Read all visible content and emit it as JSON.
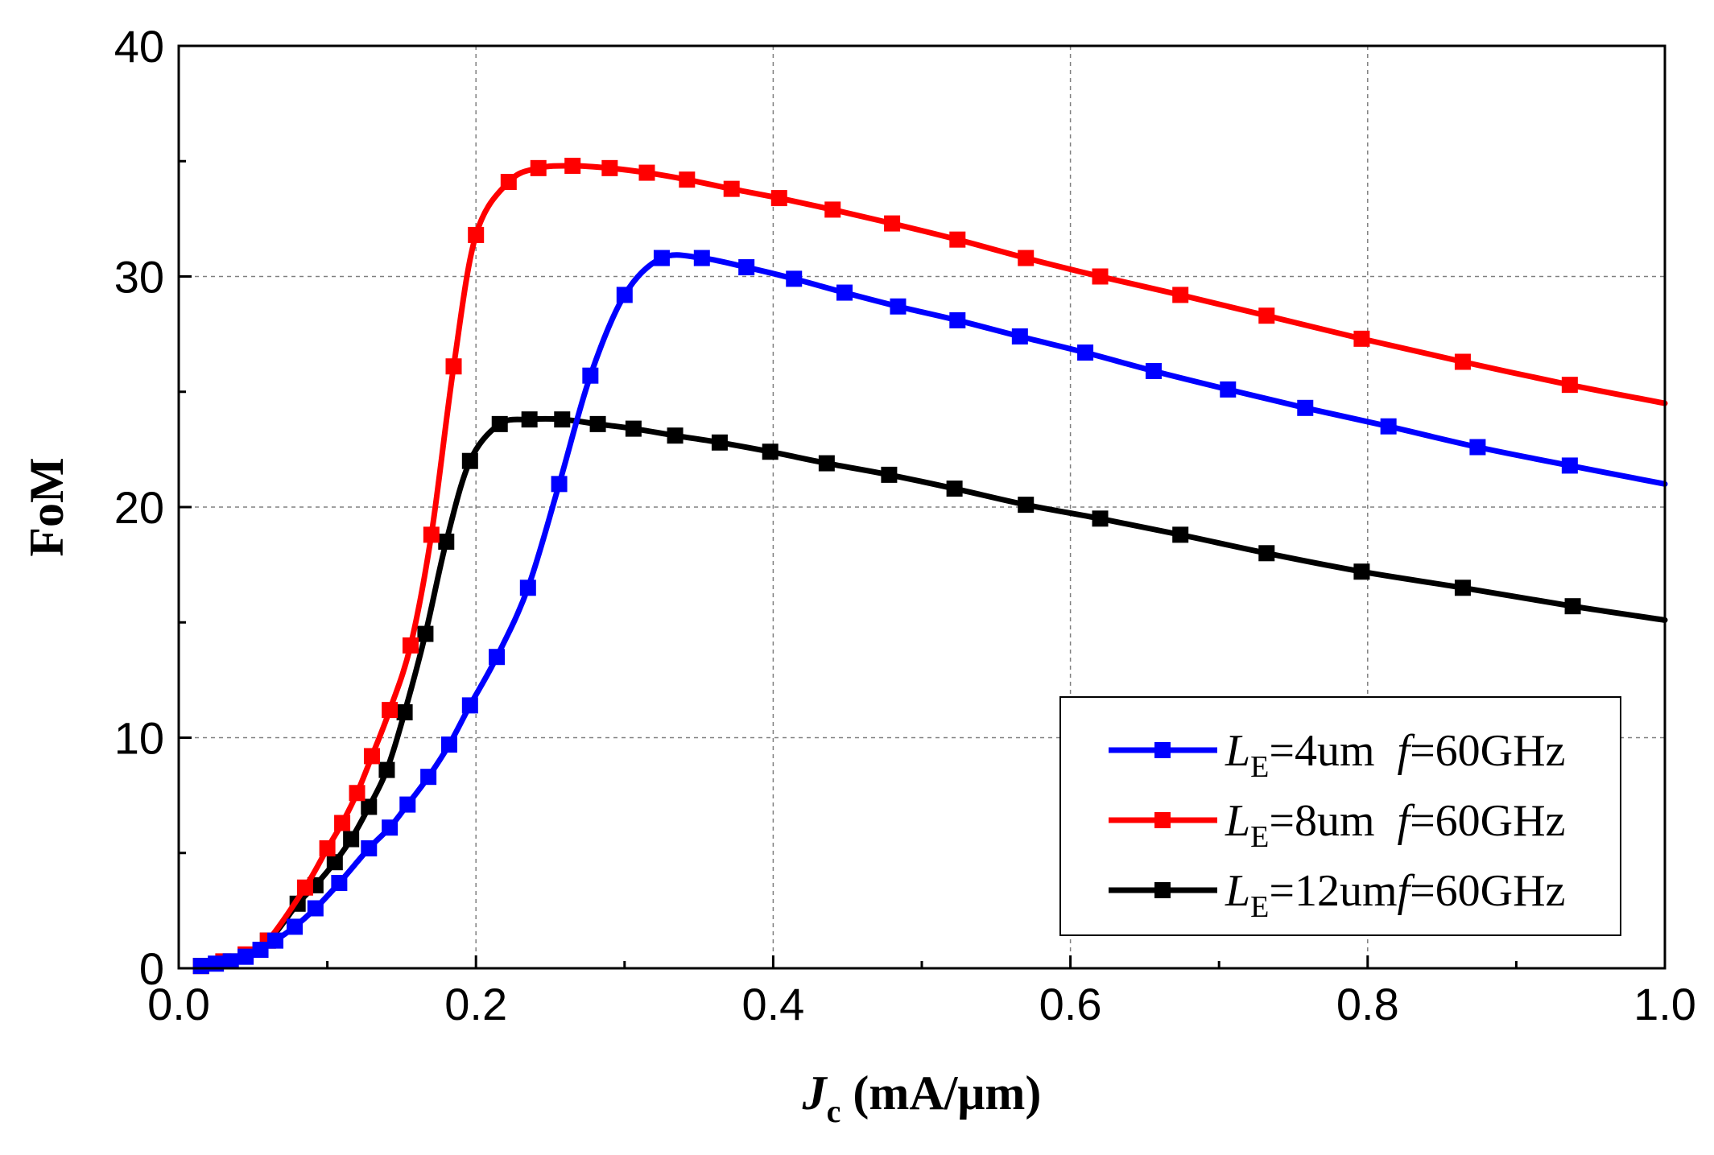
{
  "chart_data": {
    "type": "line",
    "title": "",
    "xlabel": {
      "main": "J",
      "sub": "c",
      "rest": " (mA/μm)"
    },
    "ylabel": "FoM",
    "xlim": [
      0.0,
      1.0
    ],
    "ylim": [
      0,
      40
    ],
    "xticks": [
      0.0,
      0.2,
      0.4,
      0.6,
      0.8,
      1.0
    ],
    "xtick_labels": [
      "0.0",
      "0.2",
      "0.4",
      "0.6",
      "0.8",
      "1.0"
    ],
    "yticks": [
      0,
      10,
      20,
      30,
      40
    ],
    "ytick_labels": [
      "0",
      "10",
      "20",
      "30",
      "40"
    ],
    "grid": true,
    "legend_position": "bottom-right",
    "series": [
      {
        "name": "LE=4um f=60GHz",
        "legend": {
          "l": "L",
          "sub": "E",
          "mid": "=4um  ",
          "f": "f",
          "tail": "=60GHz"
        },
        "color": "#0000ff",
        "x": [
          0.015,
          0.025,
          0.035,
          0.045,
          0.055,
          0.065,
          0.078,
          0.092,
          0.108,
          0.128,
          0.142,
          0.154,
          0.168,
          0.182,
          0.196,
          0.214,
          0.235,
          0.256,
          0.277,
          0.3,
          0.325,
          0.352,
          0.382,
          0.414,
          0.448,
          0.484,
          0.524,
          0.566,
          0.61,
          0.656,
          0.706,
          0.758,
          0.814,
          0.874,
          0.936,
          1.0
        ],
        "y": [
          0.1,
          0.2,
          0.3,
          0.5,
          0.8,
          1.2,
          1.8,
          2.6,
          3.7,
          5.2,
          6.1,
          7.1,
          8.3,
          9.7,
          11.4,
          13.5,
          16.5,
          21.0,
          25.7,
          29.2,
          30.8,
          30.8,
          30.4,
          29.9,
          29.3,
          28.7,
          28.1,
          27.4,
          26.7,
          25.9,
          25.1,
          24.3,
          23.5,
          22.6,
          21.8,
          21.0
        ]
      },
      {
        "name": "LE=8um f=60GHz",
        "legend": {
          "l": "L",
          "sub": "E",
          "mid": "=8um  ",
          "f": "f",
          "tail": "=60GHz"
        },
        "color": "#ff0000",
        "x": [
          0.015,
          0.03,
          0.045,
          0.06,
          0.085,
          0.1,
          0.11,
          0.12,
          0.13,
          0.142,
          0.156,
          0.17,
          0.185,
          0.2,
          0.222,
          0.242,
          0.265,
          0.29,
          0.315,
          0.342,
          0.372,
          0.404,
          0.44,
          0.48,
          0.524,
          0.57,
          0.62,
          0.674,
          0.732,
          0.796,
          0.864,
          0.936,
          1.0
        ],
        "y": [
          0.1,
          0.3,
          0.6,
          1.2,
          3.5,
          5.2,
          6.3,
          7.6,
          9.2,
          11.2,
          14.0,
          18.8,
          26.1,
          31.8,
          34.1,
          34.7,
          34.8,
          34.7,
          34.5,
          34.2,
          33.8,
          33.4,
          32.9,
          32.3,
          31.6,
          30.8,
          30.0,
          29.2,
          28.3,
          27.3,
          26.3,
          25.3,
          24.5
        ]
      },
      {
        "name": "LE=12um f=60GHz",
        "legend": {
          "l": "L",
          "sub": "E",
          "mid": "=12um",
          "f": "f",
          "tail": "=60GHz"
        },
        "color": "#000000",
        "x": [
          0.015,
          0.035,
          0.06,
          0.08,
          0.092,
          0.105,
          0.116,
          0.128,
          0.14,
          0.152,
          0.166,
          0.18,
          0.196,
          0.216,
          0.236,
          0.258,
          0.282,
          0.306,
          0.334,
          0.364,
          0.398,
          0.436,
          0.478,
          0.522,
          0.57,
          0.62,
          0.674,
          0.732,
          0.796,
          0.864,
          0.938,
          1.0
        ],
        "y": [
          0.1,
          0.3,
          1.2,
          2.8,
          3.6,
          4.6,
          5.6,
          7.0,
          8.6,
          11.1,
          14.5,
          18.5,
          22.0,
          23.6,
          23.8,
          23.8,
          23.6,
          23.4,
          23.1,
          22.8,
          22.4,
          21.9,
          21.4,
          20.8,
          20.1,
          19.5,
          18.8,
          18.0,
          17.2,
          16.5,
          15.7,
          15.1
        ]
      }
    ]
  }
}
